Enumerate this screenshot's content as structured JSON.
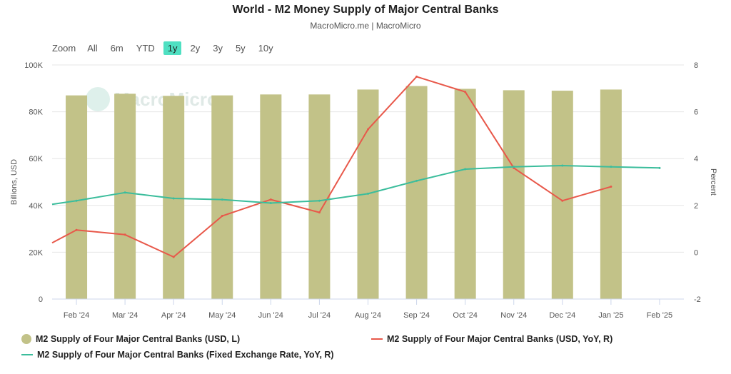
{
  "title": "World - M2 Money Supply of Major Central Banks",
  "subtitle": "MacroMicro.me | MacroMicro",
  "watermark": "MacroMicro",
  "zoom": {
    "label": "Zoom",
    "options": [
      "All",
      "6m",
      "YTD",
      "1y",
      "2y",
      "3y",
      "5y",
      "10y"
    ],
    "selected": "1y"
  },
  "colors": {
    "bar": "#c2c288",
    "red": "#e8584a",
    "teal": "#3bbd9c",
    "zoom_active": "#4fe0c2",
    "grid": "#e6e6e6"
  },
  "legend": [
    {
      "label": "M2 Supply of Four Major Central Banks (USD, L)",
      "color": "#c2c288",
      "shape": "circle"
    },
    {
      "label": "M2 Supply of Four Major Central Banks (USD, YoY, R)",
      "color": "#e8584a",
      "shape": "line"
    },
    {
      "label": "M2 Supply of Four Major Central Banks (Fixed Exchange Rate, YoY, R)",
      "color": "#3bbd9c",
      "shape": "line"
    }
  ],
  "chart_data": {
    "type": "bar",
    "categories": [
      "Feb '24",
      "Mar '24",
      "Apr '24",
      "May '24",
      "Jun '24",
      "Jul '24",
      "Aug '24",
      "Sep '24",
      "Oct '24",
      "Nov '24",
      "Dec '24",
      "Jan '25",
      "Feb '25"
    ],
    "ylabel_left": "Billions, USD",
    "ylabel_right": "Percent",
    "yticks_left": [
      "0",
      "20K",
      "40K",
      "60K",
      "80K",
      "100K"
    ],
    "yticks_right": [
      "-2",
      "0",
      "2",
      "4",
      "6",
      "8"
    ],
    "ylim_left": [
      0,
      100000
    ],
    "ylim_right": [
      -2,
      8
    ],
    "grid": true,
    "legend_position": "bottom",
    "series": [
      {
        "name": "M2 Supply of Four Major Central Banks (USD, L)",
        "type": "bar",
        "axis": "left",
        "values": [
          87000,
          87700,
          86800,
          87000,
          87400,
          87400,
          89500,
          91000,
          89800,
          89200,
          89000,
          89500,
          null
        ]
      },
      {
        "name": "M2 Supply of Four Major Central Banks (USD, YoY, R)",
        "type": "line",
        "axis": "right",
        "lead_in": 0.4,
        "values": [
          0.95,
          0.75,
          -0.2,
          1.55,
          2.25,
          1.7,
          5.25,
          7.5,
          6.85,
          3.6,
          2.2,
          2.8,
          null
        ]
      },
      {
        "name": "M2 Supply of Four Major Central Banks (Fixed Exchange Rate, YoY, R)",
        "type": "line",
        "axis": "right",
        "lead_in": 2.05,
        "values": [
          2.2,
          2.55,
          2.3,
          2.25,
          2.1,
          2.2,
          2.5,
          3.05,
          3.55,
          3.65,
          3.7,
          3.65,
          3.6
        ]
      }
    ]
  }
}
